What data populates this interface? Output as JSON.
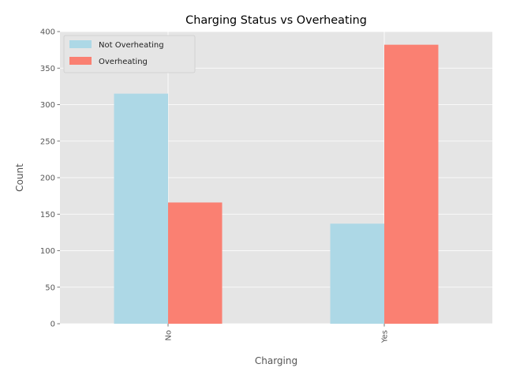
{
  "chart_data": {
    "type": "bar",
    "title": "Charging Status vs Overheating",
    "xlabel": "Charging",
    "ylabel": "Count",
    "categories": [
      "No",
      "Yes"
    ],
    "series": [
      {
        "name": "Not Overheating",
        "values": [
          315,
          137
        ],
        "color": "#add8e6"
      },
      {
        "name": "Overheating",
        "values": [
          166,
          382
        ],
        "color": "#fa8072"
      }
    ],
    "ylim": [
      0,
      400
    ],
    "yticks": [
      0,
      50,
      100,
      150,
      200,
      250,
      300,
      350,
      400
    ],
    "grid": true,
    "background": "#e5e5e5",
    "legend_position": "top-left"
  }
}
